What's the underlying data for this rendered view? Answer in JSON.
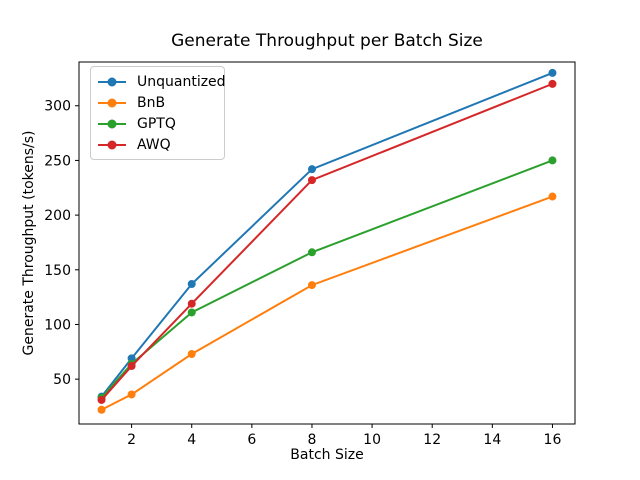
{
  "chart_data": {
    "type": "line",
    "title": "Generate Throughput per Batch Size",
    "xlabel": "Batch Size",
    "ylabel": "Generate Throughput (tokens/s)",
    "x": [
      1,
      2,
      4,
      8,
      16
    ],
    "series": [
      {
        "name": "Unquantized",
        "color": "#1f77b4",
        "values": [
          34,
          69,
          137,
          242,
          330
        ]
      },
      {
        "name": "BnB",
        "color": "#ff7f0e",
        "values": [
          22,
          36,
          73,
          136,
          217
        ]
      },
      {
        "name": "GPTQ",
        "color": "#2ca02c",
        "values": [
          33,
          64,
          111,
          166,
          250
        ]
      },
      {
        "name": "AWQ",
        "color": "#d62728",
        "values": [
          31,
          62,
          119,
          232,
          320
        ]
      }
    ],
    "xticks": [
      2,
      4,
      6,
      8,
      10,
      12,
      14,
      16
    ],
    "yticks": [
      50,
      100,
      150,
      200,
      250,
      300
    ],
    "xlim": [
      0.25,
      16.75
    ],
    "ylim": [
      9,
      340
    ],
    "grid": false,
    "marker": "o",
    "legend_position": "upper left",
    "axis_color": "#000000",
    "background_color": "#ffffff"
  }
}
